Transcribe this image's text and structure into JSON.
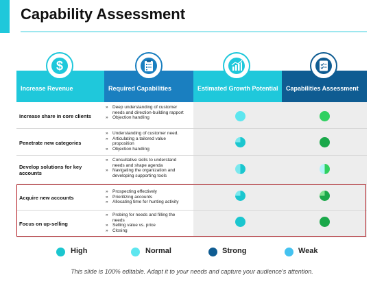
{
  "title": "Capability Assessment",
  "colors": {
    "accent": "#1fc8db",
    "header_cyan": "#1fc8db",
    "header_blue": "#1a7fc0",
    "header_navy": "#0f5c92",
    "high": "#1bc6cf",
    "normal": "#5de6ef",
    "strong": "#1aa84a",
    "weak": "#44c2f0",
    "highlight_border": "#b1141c"
  },
  "headers": [
    {
      "label": "Increase Revenue",
      "icon": "dollar-icon"
    },
    {
      "label": "Required Capabilities",
      "icon": "clipboard-icon"
    },
    {
      "label": "Estimated Growth Potential",
      "icon": "bar-chart-icon"
    },
    {
      "label": "Capabilities Assessment",
      "icon": "checklist-icon"
    }
  ],
  "rows": [
    {
      "label": "Increase share in core clients",
      "capabilities": [
        "Deep understanding of customer needs and direction-building rapport",
        "Objection handling"
      ],
      "growth": {
        "fill": 1.0,
        "color": "#5de6ef"
      },
      "assessment": {
        "fill": 1.0,
        "color": "#2fd060"
      }
    },
    {
      "label": "Penetrate new categories",
      "capabilities": [
        "Understanding of customer need.",
        "Articulating a tailored value proposition",
        "Objection handling"
      ],
      "growth": {
        "fill": 0.75,
        "color": "#1bc6cf"
      },
      "assessment": {
        "fill": 1.0,
        "color": "#1aa84a"
      }
    },
    {
      "label": "Develop solutions for key accounts",
      "capabilities": [
        "Consultative skills to understand needs and shape agenda",
        "Navigating the organization and developing supporting tools"
      ],
      "growth": {
        "fill": 0.5,
        "color": "#1bc6cf"
      },
      "assessment": {
        "fill": 0.5,
        "color": "#2fd060"
      }
    },
    {
      "label": "Acquire new accounts",
      "capabilities": [
        "Prospecting effectively",
        "Prioritizing accounts",
        "Allocating time for hunting activity"
      ],
      "growth": {
        "fill": 0.75,
        "color": "#1bc6cf"
      },
      "assessment": {
        "fill": 0.75,
        "color": "#1aa84a"
      }
    },
    {
      "label": "Focus on up-selling",
      "capabilities": [
        "Probing for needs and filling the needs",
        "Selling value vs. price",
        "Closing"
      ],
      "growth": {
        "fill": 1.0,
        "color": "#1bc6cf"
      },
      "assessment": {
        "fill": 1.0,
        "color": "#1aa84a"
      }
    }
  ],
  "legend": [
    {
      "label": "High",
      "color": "#1bc6cf"
    },
    {
      "label": "Normal",
      "color": "#5de6ef"
    },
    {
      "label": "Strong",
      "color": "#0f5c92"
    },
    {
      "label": "Weak",
      "color": "#44c2f0"
    }
  ],
  "footer": "This slide is 100% editable. Adapt it to your needs and capture your audience's attention."
}
